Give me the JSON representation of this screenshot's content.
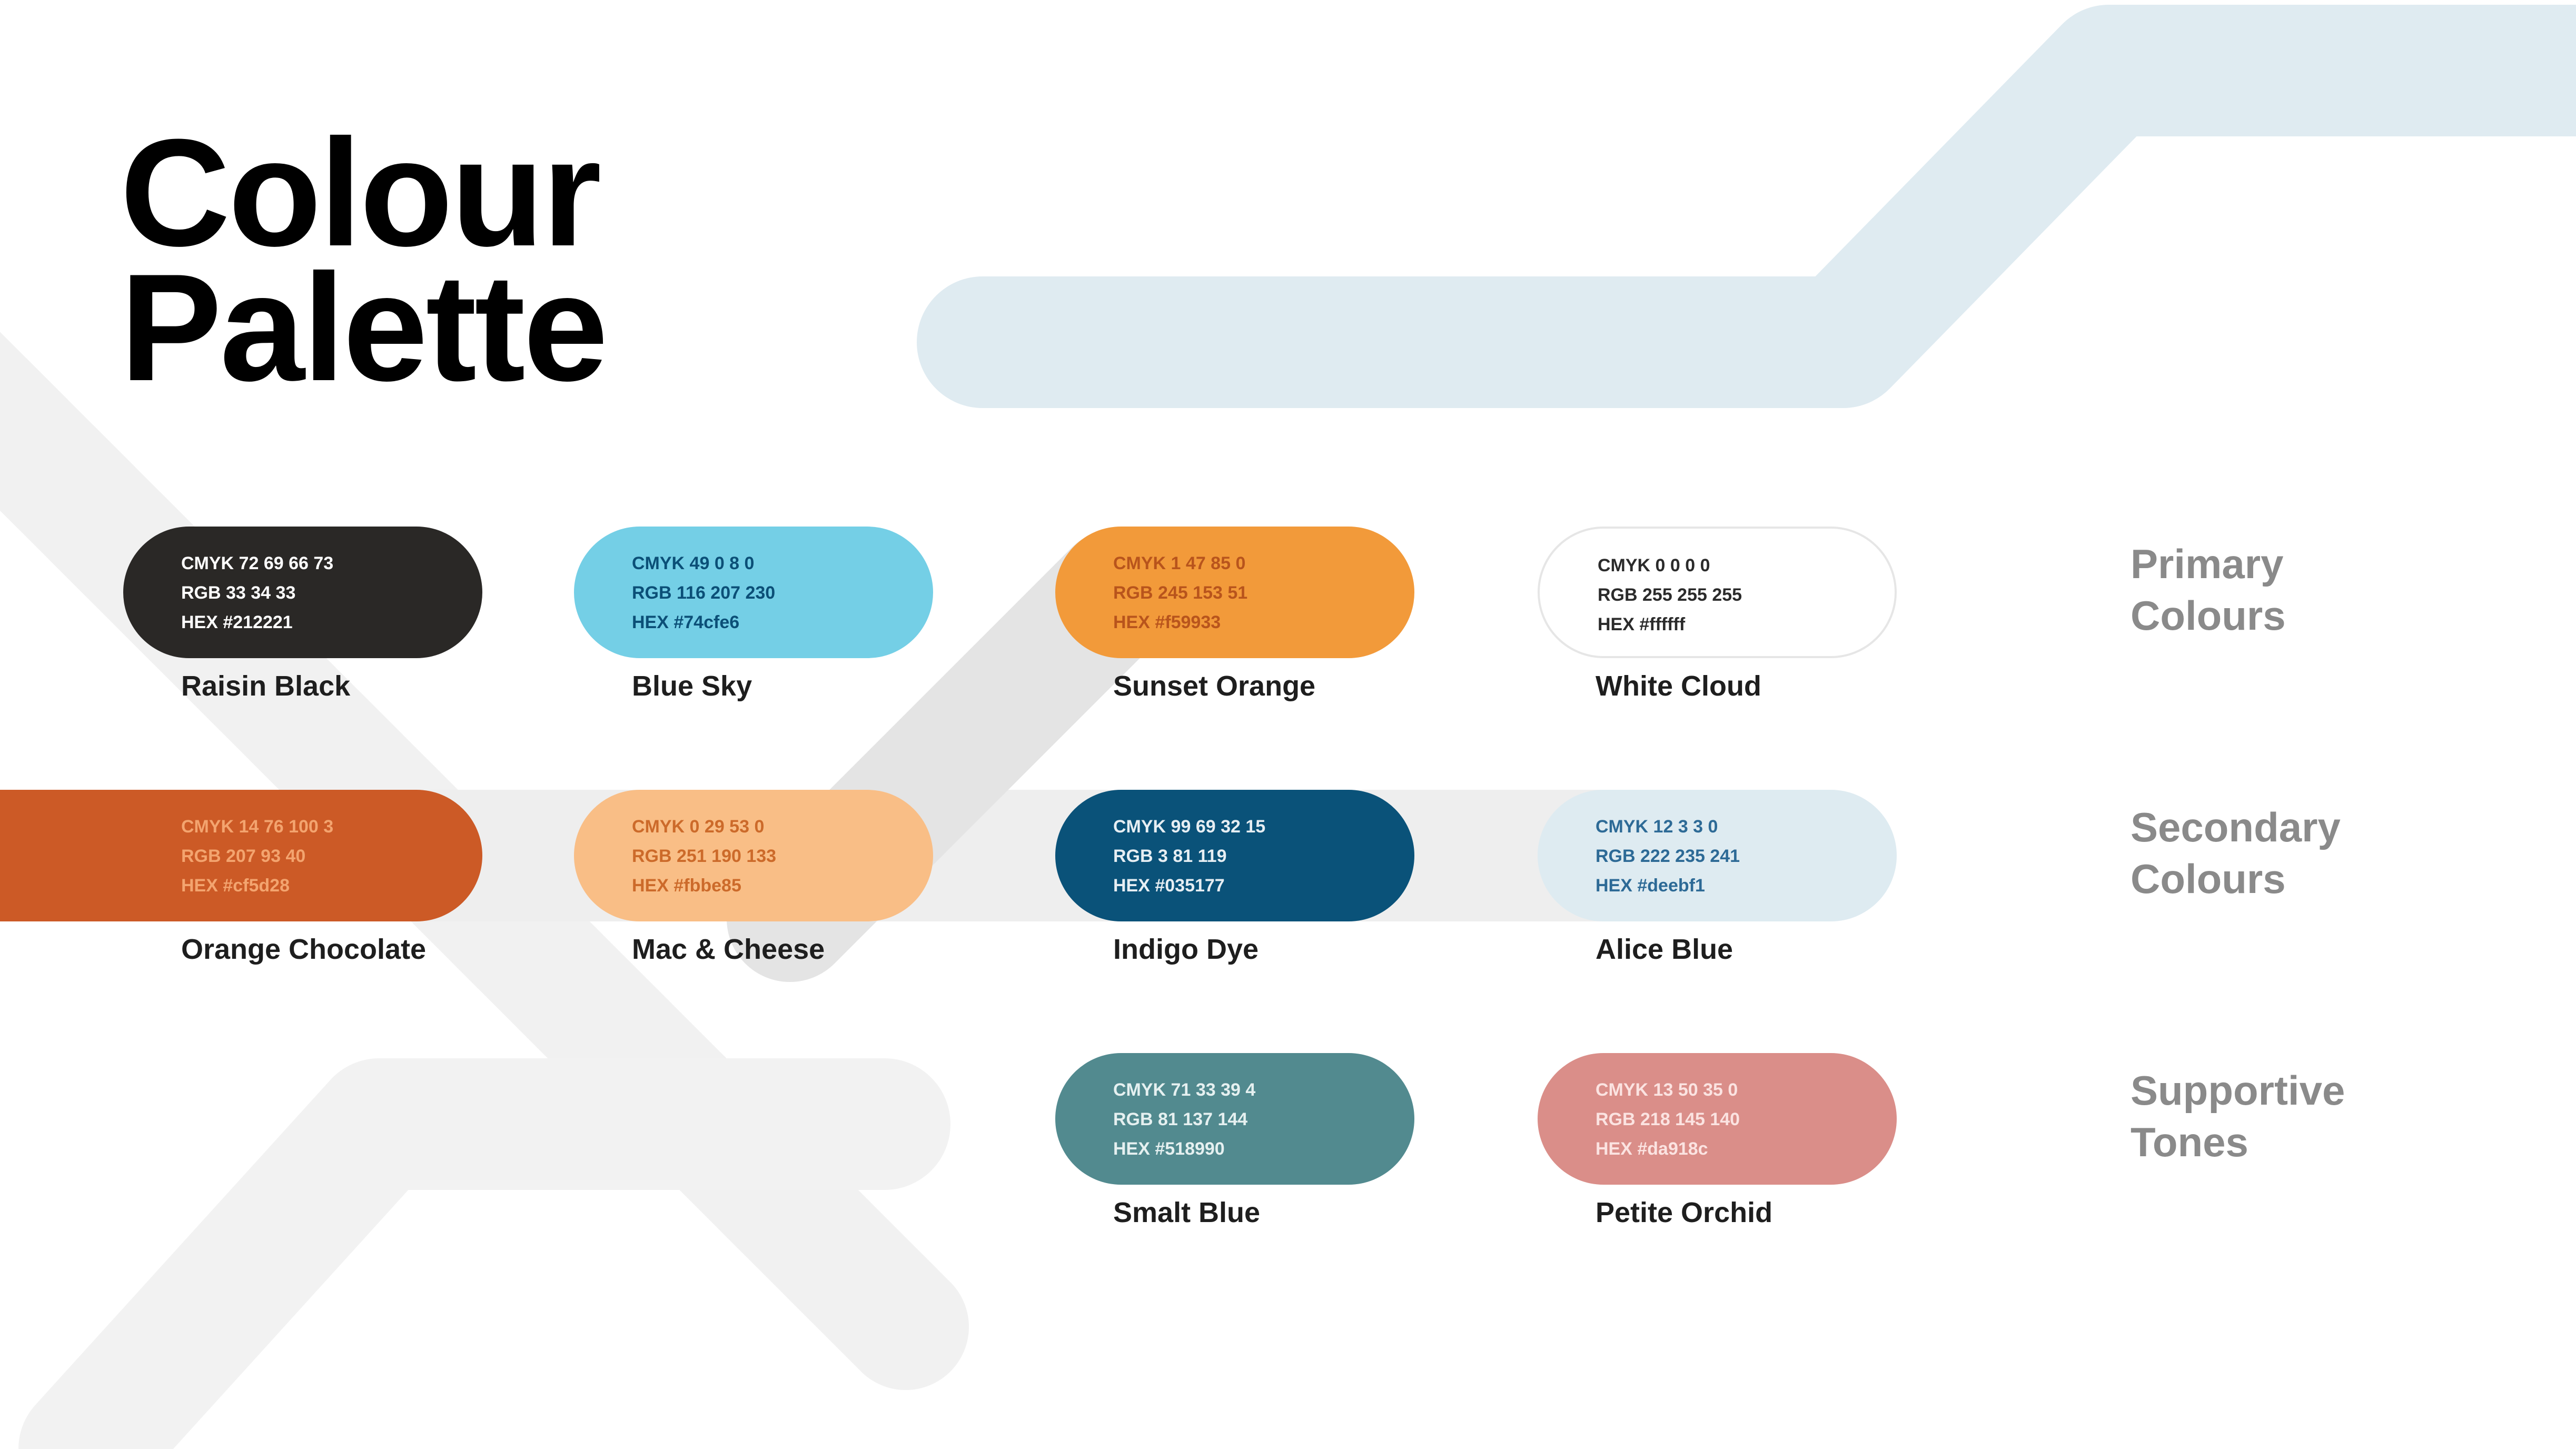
{
  "title": {
    "line1": "Colour",
    "line2": "Palette"
  },
  "categories": [
    {
      "line1": "Primary",
      "line2": "Colours"
    },
    {
      "line1": "Secondary",
      "line2": "Colours"
    },
    {
      "line1": "Supportive",
      "line2": "Tones"
    }
  ],
  "swatches": [
    {
      "name": "Raisin Black",
      "cmyk": "CMYK 72 69 66 73",
      "rgb": "RGB 33 34 33",
      "hex": "HEX #212221",
      "fill": "#2a2826",
      "text_color": "#ffffff"
    },
    {
      "name": "Blue Sky",
      "cmyk": "CMYK 49 0 8 0",
      "rgb": "RGB 116 207 230",
      "hex": "HEX #74cfe6",
      "fill": "#74cfe6",
      "text_color": "#0b4f77"
    },
    {
      "name": "Sunset Orange",
      "cmyk": "CMYK 1 47 85 0",
      "rgb": "RGB 245 153 51",
      "hex": "HEX #f59933",
      "fill": "#f29a3a",
      "text_color": "#b8541c"
    },
    {
      "name": "White Cloud",
      "cmyk": "CMYK 0 0 0 0",
      "rgb": "RGB 255 255 255",
      "hex": "HEX #ffffff",
      "fill": "#ffffff",
      "text_color": "#2b2b2b",
      "border": "#e6e6e6"
    },
    {
      "name": "Orange Chocolate",
      "cmyk": "CMYK 14 76 100 3",
      "rgb": "RGB 207 93 40",
      "hex": "HEX #cf5d28",
      "fill": "#cc5a26",
      "text_color": "#f3a46f"
    },
    {
      "name": "Mac & Cheese",
      "cmyk": "CMYK 0 29 53 0",
      "rgb": "RGB 251 190 133",
      "hex": "HEX #fbbe85",
      "fill": "#f9be86",
      "text_color": "#cc6a2a"
    },
    {
      "name": "Indigo Dye",
      "cmyk": "CMYK 99 69 32 15",
      "rgb": "RGB 3 81 119",
      "hex": "HEX #035177",
      "fill": "#0a5279",
      "text_color": "#e6eef3"
    },
    {
      "name": "Alice Blue",
      "cmyk": "CMYK 12 3 3 0",
      "rgb": "RGB 222 235 241",
      "hex": "HEX #deebf1",
      "fill": "#deebf1",
      "text_color": "#2d6a96"
    },
    {
      "name": "Smalt Blue",
      "cmyk": "CMYK 71 33 39 4",
      "rgb": "RGB 81 137 144",
      "hex": "HEX #518990",
      "fill": "#528a8f",
      "text_color": "#e5f0f0"
    },
    {
      "name": "Petite Orchid",
      "cmyk": "CMYK 13 50 35 0",
      "rgb": "RGB 218 145 140",
      "hex": "HEX #da918c",
      "fill": "#da8e89",
      "text_color": "#fbe3e1"
    }
  ]
}
